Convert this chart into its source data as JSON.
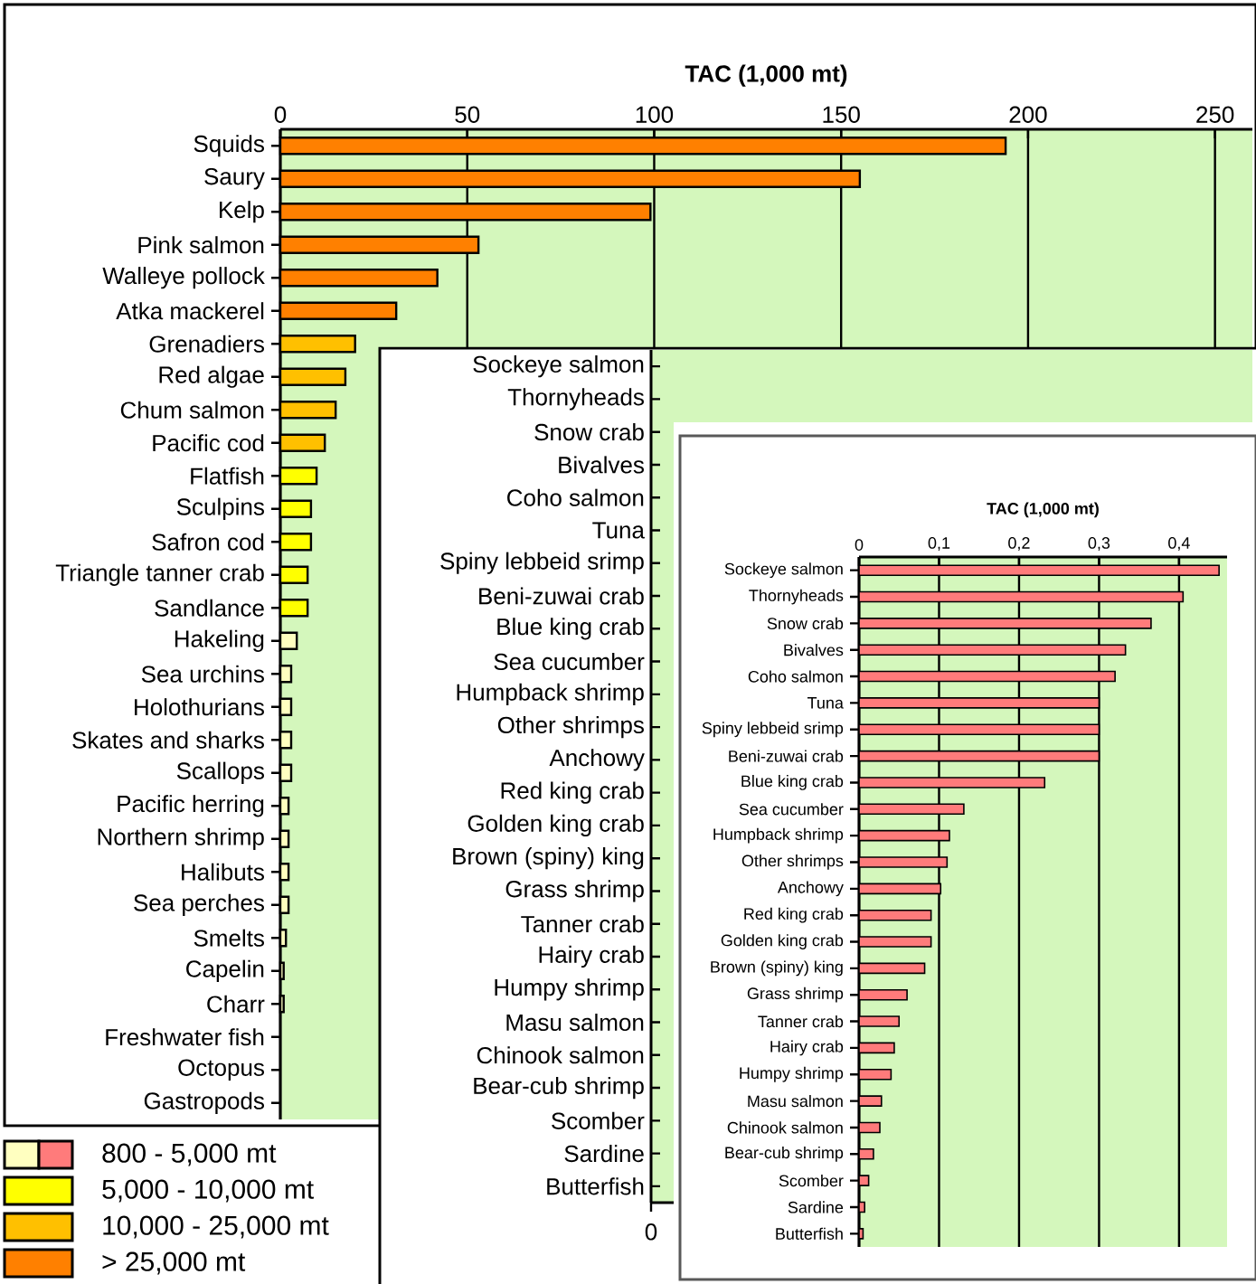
{
  "chart_data": [
    {
      "type": "bar",
      "orientation": "horizontal",
      "xlabel": "TAC (1,000 mt)",
      "categories": [
        "Squids",
        "Saury",
        "Kelp",
        "Pink salmon",
        "Walleye pollock",
        "Atka mackerel",
        "Grenadiers",
        "Red algae",
        "Chum salmon",
        "Pacific cod",
        "Flatfish",
        "Sculpins",
        "Safron cod",
        "Triangle tanner crab",
        "Sandlance",
        "Hakeling",
        "Sea urchins",
        "Holothurians",
        "Skates and sharks",
        "Scallops",
        "Pacific herring",
        "Northern shrimp",
        "Halibuts",
        "Sea perches",
        "Smelts",
        "Capelin",
        "Charr",
        "Freshwater fish",
        "Octopus",
        "Gastropods"
      ],
      "series": [
        {
          "name": "800 - 5,000 mt",
          "color": "#ffffc0",
          "values": [
            null,
            null,
            null,
            null,
            null,
            null,
            null,
            null,
            null,
            null,
            null,
            null,
            null,
            null,
            null,
            4.4,
            2.9,
            2.9,
            2.9,
            2.9,
            2.2,
            2.2,
            2.2,
            2.2,
            1.5,
            0.9,
            0.9,
            null,
            null,
            null
          ]
        },
        {
          "name": "5,000 - 10,000 mt",
          "color": "#ffff00",
          "values": [
            null,
            null,
            null,
            null,
            null,
            null,
            null,
            null,
            null,
            null,
            9.7,
            8.2,
            8.2,
            7.3,
            7.3,
            null,
            null,
            null,
            null,
            null,
            null,
            null,
            null,
            null,
            null,
            null,
            null,
            null,
            null,
            null
          ]
        },
        {
          "name": "10,000 - 25,000 mt",
          "color": "#ffc000",
          "values": [
            null,
            null,
            null,
            null,
            null,
            null,
            20,
            17.4,
            14.8,
            11.9,
            null,
            null,
            null,
            null,
            null,
            null,
            null,
            null,
            null,
            null,
            null,
            null,
            null,
            null,
            null,
            null,
            null,
            null,
            null,
            null
          ]
        },
        {
          "name": "> 25,000 mt",
          "color": "#ff8000",
          "values": [
            194,
            155,
            99,
            53,
            42,
            31,
            null,
            null,
            null,
            null,
            null,
            null,
            null,
            null,
            null,
            null,
            null,
            null,
            null,
            null,
            null,
            null,
            null,
            null,
            null,
            null,
            null,
            null,
            null,
            null
          ]
        }
      ],
      "xlim": [
        0,
        260
      ],
      "xticks": [
        0,
        50,
        100,
        150,
        200,
        250
      ],
      "grid": "x",
      "legend": "bottom"
    },
    {
      "type": "other",
      "categories": [
        "Sockeye salmon",
        "Thornyheads",
        "Snow crab",
        "Bivalves",
        "Coho salmon",
        "Tuna",
        "Spiny lebbeid srimp",
        "Beni-zuwai crab",
        "Blue king crab",
        "Sea cucumber",
        "Humpback shrimp",
        "Other shrimps",
        "Anchowy",
        "Red king crab",
        "Golden king crab",
        "Brown (spiny) king",
        "Grass shrimp",
        "Tanner crab",
        "Hairy crab",
        "Humpy shrimp",
        "Masu salmon",
        "Chinook salmon",
        "Bear-cub shrimp",
        "Scomber",
        "Sardine",
        "Butterfish"
      ],
      "annotations": [
        "0"
      ]
    },
    {
      "type": "bar",
      "orientation": "horizontal",
      "xlabel": "TAC (1,000 mt)",
      "categories": [
        "Sockeye salmon",
        "Thornyheads",
        "Snow crab",
        "Bivalves",
        "Coho salmon",
        "Tuna",
        "Spiny lebbeid srimp",
        "Beni-zuwai crab",
        "Blue king crab",
        "Sea cucumber",
        "Humpback shrimp",
        "Other shrimps",
        "Anchowy",
        "Red king crab",
        "Golden king crab",
        "Brown (spiny) king",
        "Grass shrimp",
        "Tanner crab",
        "Hairy crab",
        "Humpy shrimp",
        "Masu salmon",
        "Chinook salmon",
        "Bear-cub shrimp",
        "Scomber",
        "Sardine",
        "Butterfish"
      ],
      "values": [
        0.45,
        0.405,
        0.365,
        0.333,
        0.32,
        0.3,
        0.3,
        0.3,
        0.232,
        0.131,
        0.113,
        0.11,
        0.102,
        0.09,
        0.09,
        0.082,
        0.06,
        0.05,
        0.044,
        0.04,
        0.028,
        0.026,
        0.018,
        0.012,
        0.007,
        0.005
      ],
      "color": "#ff7b7b",
      "xlim": [
        0,
        0.46
      ],
      "xticks": [
        0,
        {
          "value": 0.1,
          "label": "0,1"
        },
        {
          "value": 0.2,
          "label": "0,2"
        },
        {
          "value": 0.3,
          "label": "0,3"
        },
        {
          "value": 0.4,
          "label": "0,4"
        }
      ],
      "grid": "x"
    }
  ]
}
